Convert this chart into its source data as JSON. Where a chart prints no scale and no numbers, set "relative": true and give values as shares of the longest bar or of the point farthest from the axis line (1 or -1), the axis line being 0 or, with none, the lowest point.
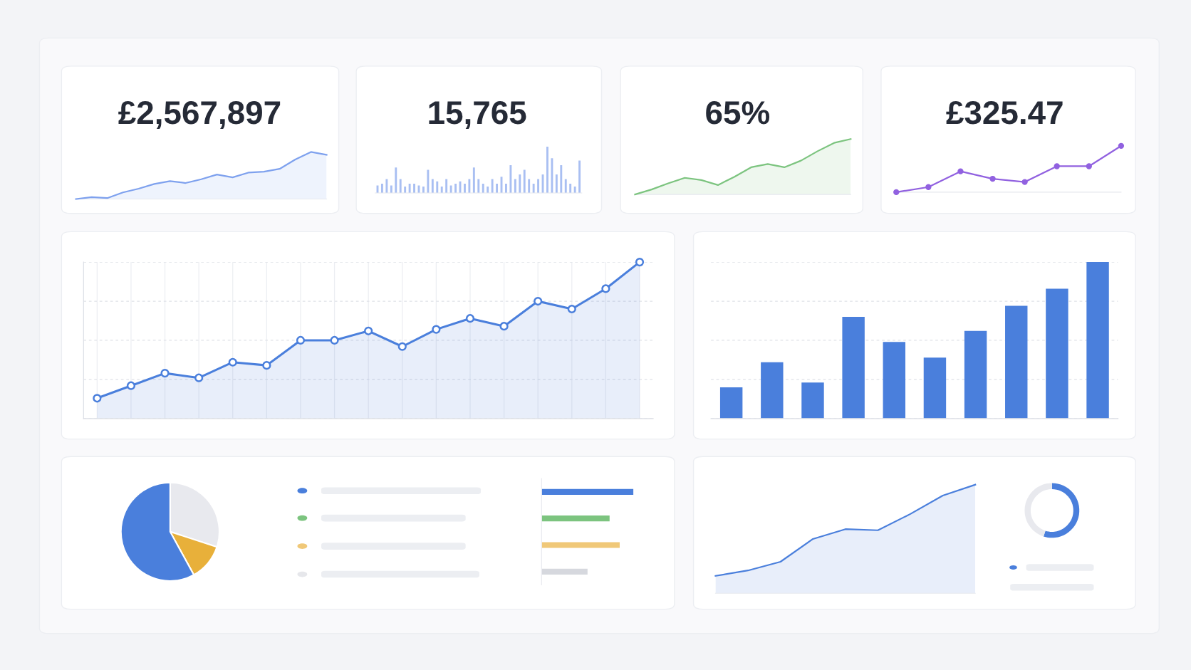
{
  "chart_data": [
    {
      "type": "area",
      "title": "£2,567,897",
      "relative": true,
      "categories": [
        null,
        null,
        null,
        null,
        null,
        null,
        null,
        null,
        null,
        null,
        null,
        null,
        null,
        null,
        null,
        null,
        null
      ],
      "series": [
        {
          "color": "#7ea1ee",
          "values": [
            0,
            0.04,
            0.02,
            0.14,
            0.22,
            0.32,
            0.38,
            0.34,
            0.42,
            0.52,
            0.46,
            0.56,
            0.58,
            0.64,
            0.84,
            1.0,
            0.94
          ]
        }
      ]
    },
    {
      "type": "bar",
      "title": "15,765",
      "relative": true,
      "categories": [
        null,
        null,
        null,
        null,
        null,
        null,
        null,
        null,
        null,
        null,
        null,
        null,
        null,
        null,
        null,
        null,
        null,
        null,
        null,
        null,
        null,
        null,
        null,
        null,
        null,
        null,
        null,
        null,
        null,
        null,
        null,
        null,
        null,
        null,
        null,
        null,
        null,
        null,
        null,
        null,
        null,
        null,
        null,
        null,
        null
      ],
      "series": [
        {
          "color": "#a9bff2",
          "values": [
            0.16,
            0.2,
            0.3,
            0.16,
            0.55,
            0.3,
            0.14,
            0.2,
            0.2,
            0.16,
            0.14,
            0.5,
            0.3,
            0.25,
            0.14,
            0.3,
            0.16,
            0.2,
            0.25,
            0.2,
            0.3,
            0.55,
            0.3,
            0.2,
            0.14,
            0.3,
            0.2,
            0.35,
            0.2,
            0.6,
            0.3,
            0.4,
            0.5,
            0.3,
            0.2,
            0.3,
            0.4,
            1.0,
            0.75,
            0.4,
            0.6,
            0.3,
            0.2,
            0.14,
            0.7
          ]
        }
      ]
    },
    {
      "type": "area",
      "title": "65%",
      "relative": true,
      "categories": [
        null,
        null,
        null,
        null,
        null,
        null,
        null,
        null,
        null,
        null,
        null,
        null,
        null,
        null
      ],
      "series": [
        {
          "color": "#7cc47f",
          "values": [
            0,
            0.09,
            0.2,
            0.3,
            0.26,
            0.17,
            0.32,
            0.49,
            0.55,
            0.49,
            0.61,
            0.78,
            0.93,
            1.0
          ]
        }
      ]
    },
    {
      "type": "line",
      "title": "£325.47",
      "relative": true,
      "marker": "circle",
      "categories": [
        null,
        null,
        null,
        null,
        null,
        null,
        null,
        null
      ],
      "series": [
        {
          "color": "#9161e0",
          "values": [
            0,
            0.11,
            0.45,
            0.29,
            0.22,
            0.56,
            0.56,
            1.0
          ]
        }
      ]
    },
    {
      "type": "area",
      "relative": true,
      "marker": "circle",
      "grid": true,
      "categories": [
        null,
        null,
        null,
        null,
        null,
        null,
        null,
        null,
        null,
        null,
        null,
        null,
        null,
        null,
        null,
        null,
        null
      ],
      "series": [
        {
          "color": "#4a7fdc",
          "values": [
            0.13,
            0.21,
            0.29,
            0.26,
            0.36,
            0.34,
            0.5,
            0.5,
            0.56,
            0.46,
            0.57,
            0.64,
            0.59,
            0.75,
            0.7,
            0.83,
            1.0
          ]
        }
      ]
    },
    {
      "type": "bar",
      "relative": true,
      "grid": "y",
      "categories": [
        null,
        null,
        null,
        null,
        null,
        null,
        null,
        null,
        null,
        null
      ],
      "series": [
        {
          "color": "#4a7fdc",
          "values": [
            0.2,
            0.36,
            0.23,
            0.65,
            0.49,
            0.39,
            0.56,
            0.72,
            0.83,
            1.0
          ]
        }
      ]
    },
    {
      "type": "pie",
      "categories": [
        null,
        null,
        null
      ],
      "values": [
        30,
        12,
        58
      ],
      "colors": [
        "#e8e9ee",
        "#e8b03a",
        "#4a7fdc"
      ]
    },
    {
      "type": "bar",
      "orientation": "horizontal",
      "relative": true,
      "categories": [
        null,
        null,
        null,
        null
      ],
      "values": [
        1.0,
        0.74,
        0.85,
        0.5
      ],
      "colors": [
        "#4a7fdc",
        "#7cc47f",
        "#f0c878",
        "#d6d8de"
      ]
    },
    {
      "type": "area",
      "relative": true,
      "categories": [
        null,
        null,
        null,
        null,
        null,
        null,
        null,
        null,
        null
      ],
      "series": [
        {
          "color": "#4a7fdc",
          "values": [
            0.16,
            0.21,
            0.29,
            0.5,
            0.59,
            0.58,
            0.73,
            0.9,
            1.0
          ]
        }
      ]
    },
    {
      "type": "donut",
      "categories": [
        null,
        null
      ],
      "values": [
        55,
        45
      ],
      "colors": [
        "#4a7fdc",
        "#e8e9ee"
      ]
    }
  ]
}
